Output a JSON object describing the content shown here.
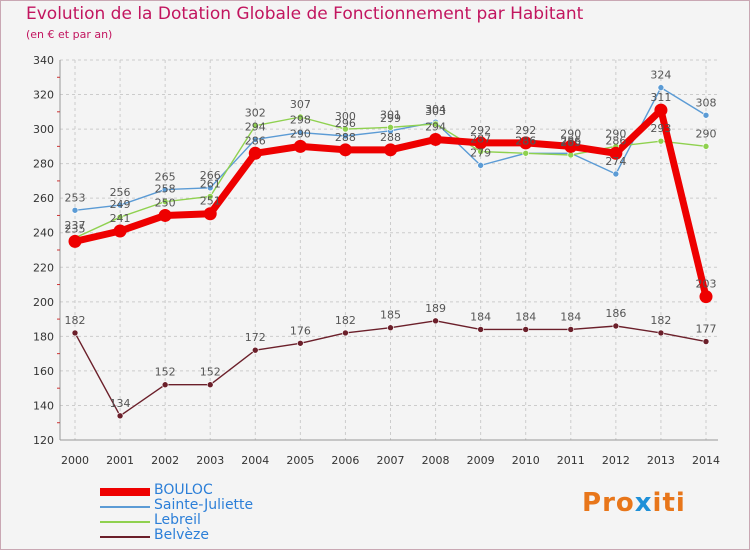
{
  "chart_data": {
    "type": "line",
    "title": "Evolution de la Dotation Globale de Fonctionnement par Habitant",
    "subtitle": "(en € et par an)",
    "categories": [
      "2000",
      "2001",
      "2002",
      "2003",
      "2004",
      "2005",
      "2006",
      "2007",
      "2008",
      "2009",
      "2010",
      "2011",
      "2012",
      "2013",
      "2014"
    ],
    "ylim": [
      120,
      340
    ],
    "yticks": [
      120,
      140,
      160,
      180,
      200,
      220,
      240,
      260,
      280,
      300,
      320,
      340
    ],
    "grid": true,
    "legend_position": "bottom-left",
    "series": [
      {
        "name": "BOULOC",
        "color": "#ee0000",
        "values": [
          235,
          241,
          250,
          251,
          286,
          290,
          288,
          288,
          294,
          292,
          292,
          290,
          286,
          311,
          203
        ]
      },
      {
        "name": "Sainte-Juliette",
        "color": "#5b9bd5",
        "values": [
          253,
          256,
          265,
          266,
          294,
          298,
          296,
          299,
          304,
          279,
          286,
          286,
          274,
          324,
          308
        ]
      },
      {
        "name": "Lebreil",
        "color": "#8fd14f",
        "values": [
          237,
          249,
          258,
          261,
          302,
          307,
          300,
          301,
          303,
          287,
          286,
          285,
          290,
          293,
          290
        ]
      },
      {
        "name": "Belvèze",
        "color": "#6b1f2a",
        "values": [
          182,
          134,
          152,
          152,
          172,
          176,
          182,
          185,
          189,
          184,
          184,
          184,
          186,
          182,
          177
        ]
      }
    ]
  },
  "logo": {
    "text": "Proxiti",
    "color": "#e8761a",
    "accent": "#1e90d8"
  }
}
